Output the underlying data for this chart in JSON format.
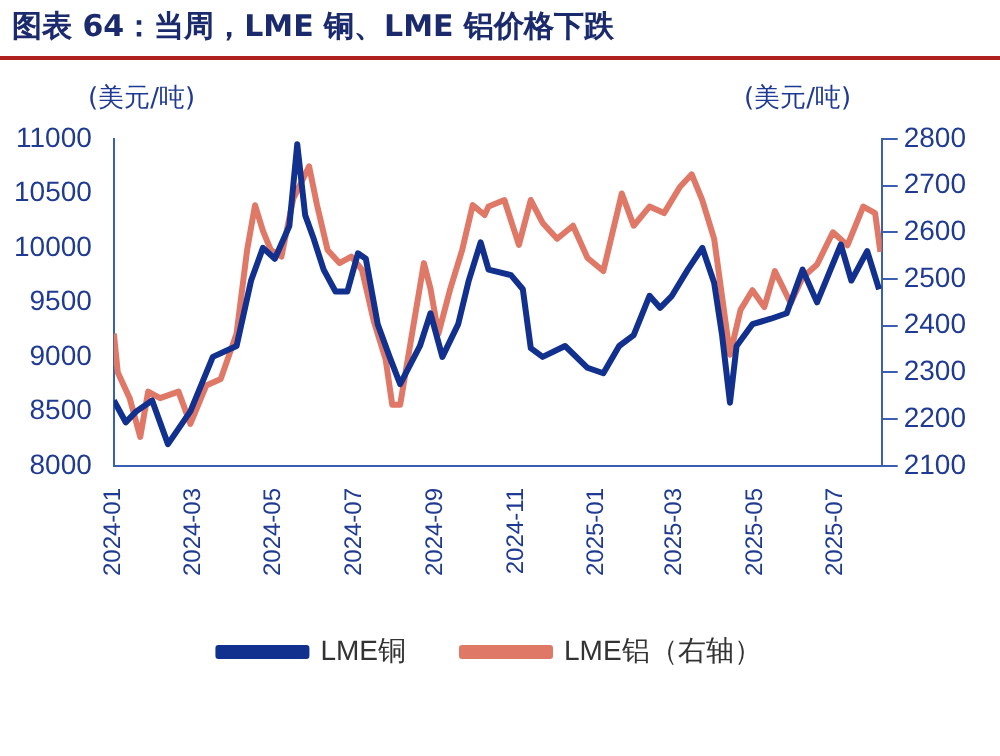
{
  "chart_data": {
    "type": "line",
    "title": "图表 64：当周，LME 铜、LME 铝价格下跌",
    "ylabel": "(美元/吨)",
    "y2label": "(美元/吨)",
    "xlim": [
      "2024-01-01",
      "2025-08-05"
    ],
    "xticks": [
      "2024-01",
      "2024-03",
      "2024-05",
      "2024-07",
      "2024-09",
      "2024-11",
      "2025-01",
      "2025-03",
      "2025-05",
      "2025-07"
    ],
    "ylim": [
      8000,
      11000
    ],
    "yticks": [
      8000,
      8500,
      9000,
      9500,
      10000,
      10500,
      11000
    ],
    "y2lim": [
      2100,
      2800
    ],
    "y2ticks": [
      2100,
      2200,
      2300,
      2400,
      2500,
      2600,
      2700,
      2800
    ],
    "grid": false,
    "legend": "bottom",
    "marker": "none",
    "line_style": "solid",
    "series": [
      {
        "name": "LME铜",
        "color": "#12318f",
        "x": [
          "2024-01-01",
          "2024-01-10",
          "2024-01-18",
          "2024-01-30",
          "2024-02-11",
          "2024-02-28",
          "2024-03-16",
          "2024-04-03",
          "2024-04-14",
          "2024-04-23",
          "2024-05-02",
          "2024-05-13",
          "2024-05-19",
          "2024-05-25",
          "2024-05-31",
          "2024-06-08",
          "2024-06-17",
          "2024-06-26",
          "2024-07-04",
          "2024-07-10",
          "2024-07-19",
          "2024-07-28",
          "2024-08-05",
          "2024-08-20",
          "2024-08-28",
          "2024-09-06",
          "2024-09-18",
          "2024-09-26",
          "2024-10-05",
          "2024-10-11",
          "2024-10-28",
          "2024-11-06",
          "2024-11-12",
          "2024-11-21",
          "2024-12-08",
          "2024-12-25",
          "2025-01-06",
          "2025-01-18",
          "2025-01-29",
          "2025-02-10",
          "2025-02-18",
          "2025-02-27",
          "2025-03-11",
          "2025-03-22",
          "2025-03-31",
          "2025-04-06",
          "2025-04-12",
          "2025-04-17",
          "2025-04-29",
          "2025-05-13",
          "2025-05-25",
          "2025-06-06",
          "2025-06-17",
          "2025-07-05",
          "2025-07-13",
          "2025-07-25",
          "2025-08-03"
        ],
        "values": [
          8600,
          8400,
          8500,
          8600,
          8200,
          8500,
          9000,
          9100,
          9700,
          10000,
          9900,
          10200,
          10950,
          10300,
          10100,
          9800,
          9600,
          9600,
          9950,
          9900,
          9300,
          9000,
          8750,
          9100,
          9400,
          9000,
          9300,
          9700,
          10050,
          9800,
          9750,
          9620,
          9080,
          9000,
          9100,
          8900,
          8850,
          9100,
          9200,
          9560,
          9450,
          9560,
          9800,
          10000,
          9680,
          9200,
          8580,
          9100,
          9300,
          9350,
          9400,
          9800,
          9500,
          10030,
          9700,
          9970,
          9620
        ]
      },
      {
        "name": "LME铝（右轴）",
        "color": "#e07868",
        "axis": "y2",
        "x": [
          "2024-01-01",
          "2024-01-04",
          "2024-01-13",
          "2024-01-21",
          "2024-01-27",
          "2024-02-05",
          "2024-02-19",
          "2024-02-28",
          "2024-03-11",
          "2024-03-22",
          "2024-04-03",
          "2024-04-11",
          "2024-04-17",
          "2024-04-23",
          "2024-04-29",
          "2024-05-07",
          "2024-05-16",
          "2024-05-28",
          "2024-06-03",
          "2024-06-11",
          "2024-06-20",
          "2024-06-29",
          "2024-07-07",
          "2024-07-16",
          "2024-07-25",
          "2024-07-30",
          "2024-08-05",
          "2024-08-14",
          "2024-08-23",
          "2024-08-28",
          "2024-09-03",
          "2024-09-12",
          "2024-09-21",
          "2024-09-29",
          "2024-10-08",
          "2024-10-11",
          "2024-10-23",
          "2024-11-03",
          "2024-11-12",
          "2024-11-21",
          "2024-12-02",
          "2024-12-14",
          "2024-12-25",
          "2025-01-06",
          "2025-01-20",
          "2025-01-29",
          "2025-02-10",
          "2025-02-21",
          "2025-03-05",
          "2025-03-14",
          "2025-03-22",
          "2025-03-31",
          "2025-04-06",
          "2025-04-12",
          "2025-04-20",
          "2025-04-29",
          "2025-05-08",
          "2025-05-16",
          "2025-05-28",
          "2025-06-06",
          "2025-06-17",
          "2025-06-29",
          "2025-07-10",
          "2025-07-22",
          "2025-07-31",
          "2025-08-04"
        ],
        "values": [
          2383,
          2300,
          2245,
          2162,
          2259,
          2245,
          2259,
          2190,
          2272,
          2286,
          2383,
          2562,
          2658,
          2603,
          2562,
          2548,
          2672,
          2741,
          2658,
          2562,
          2534,
          2548,
          2520,
          2410,
          2328,
          2231,
          2231,
          2383,
          2534,
          2479,
          2383,
          2479,
          2562,
          2658,
          2637,
          2655,
          2669,
          2573,
          2669,
          2620,
          2586,
          2614,
          2545,
          2517,
          2683,
          2614,
          2655,
          2641,
          2697,
          2724,
          2669,
          2586,
          2462,
          2338,
          2434,
          2476,
          2440,
          2517,
          2448,
          2503,
          2531,
          2600,
          2572,
          2655,
          2641,
          2558
        ]
      }
    ]
  }
}
